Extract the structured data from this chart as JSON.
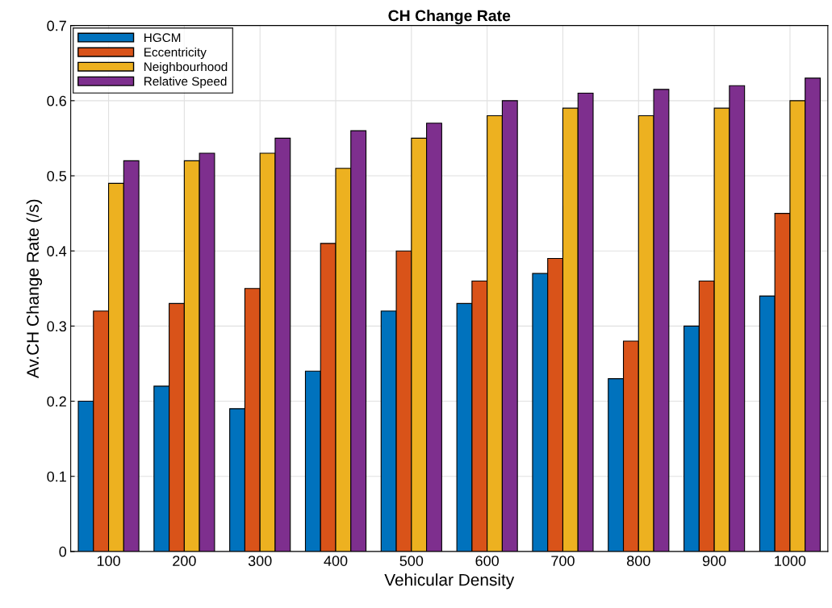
{
  "chart_data": {
    "type": "bar",
    "title": "CH Change Rate",
    "xlabel": "Vehicular Density",
    "ylabel": "Av.CH Change Rate (/s)",
    "categories": [
      "100",
      "200",
      "300",
      "400",
      "500",
      "600",
      "700",
      "800",
      "900",
      "1000"
    ],
    "series": [
      {
        "name": "HGCM",
        "color": "#0072bd",
        "values": [
          0.2,
          0.22,
          0.19,
          0.24,
          0.32,
          0.33,
          0.37,
          0.23,
          0.3,
          0.34
        ]
      },
      {
        "name": "Eccentricity",
        "color": "#d95319",
        "values": [
          0.32,
          0.33,
          0.35,
          0.41,
          0.4,
          0.36,
          0.39,
          0.28,
          0.36,
          0.45
        ]
      },
      {
        "name": "Neighbourhood",
        "color": "#edb120",
        "values": [
          0.49,
          0.52,
          0.53,
          0.51,
          0.55,
          0.58,
          0.59,
          0.58,
          0.59,
          0.6
        ]
      },
      {
        "name": "Relative Speed",
        "color": "#7e2f8e",
        "values": [
          0.52,
          0.53,
          0.55,
          0.56,
          0.57,
          0.6,
          0.61,
          0.615,
          0.62,
          0.63
        ]
      }
    ],
    "ylim": [
      0,
      0.7
    ],
    "yticks": [
      0,
      0.1,
      0.2,
      0.3,
      0.4,
      0.5,
      0.6,
      0.7
    ],
    "grid": true,
    "legend": "top left"
  }
}
